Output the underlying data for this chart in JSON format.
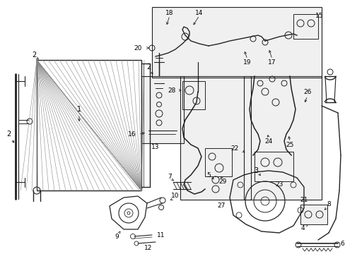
{
  "bg_color": "#ffffff",
  "fig_width": 4.89,
  "fig_height": 3.6,
  "dpi": 100,
  "lc": "#222222"
}
